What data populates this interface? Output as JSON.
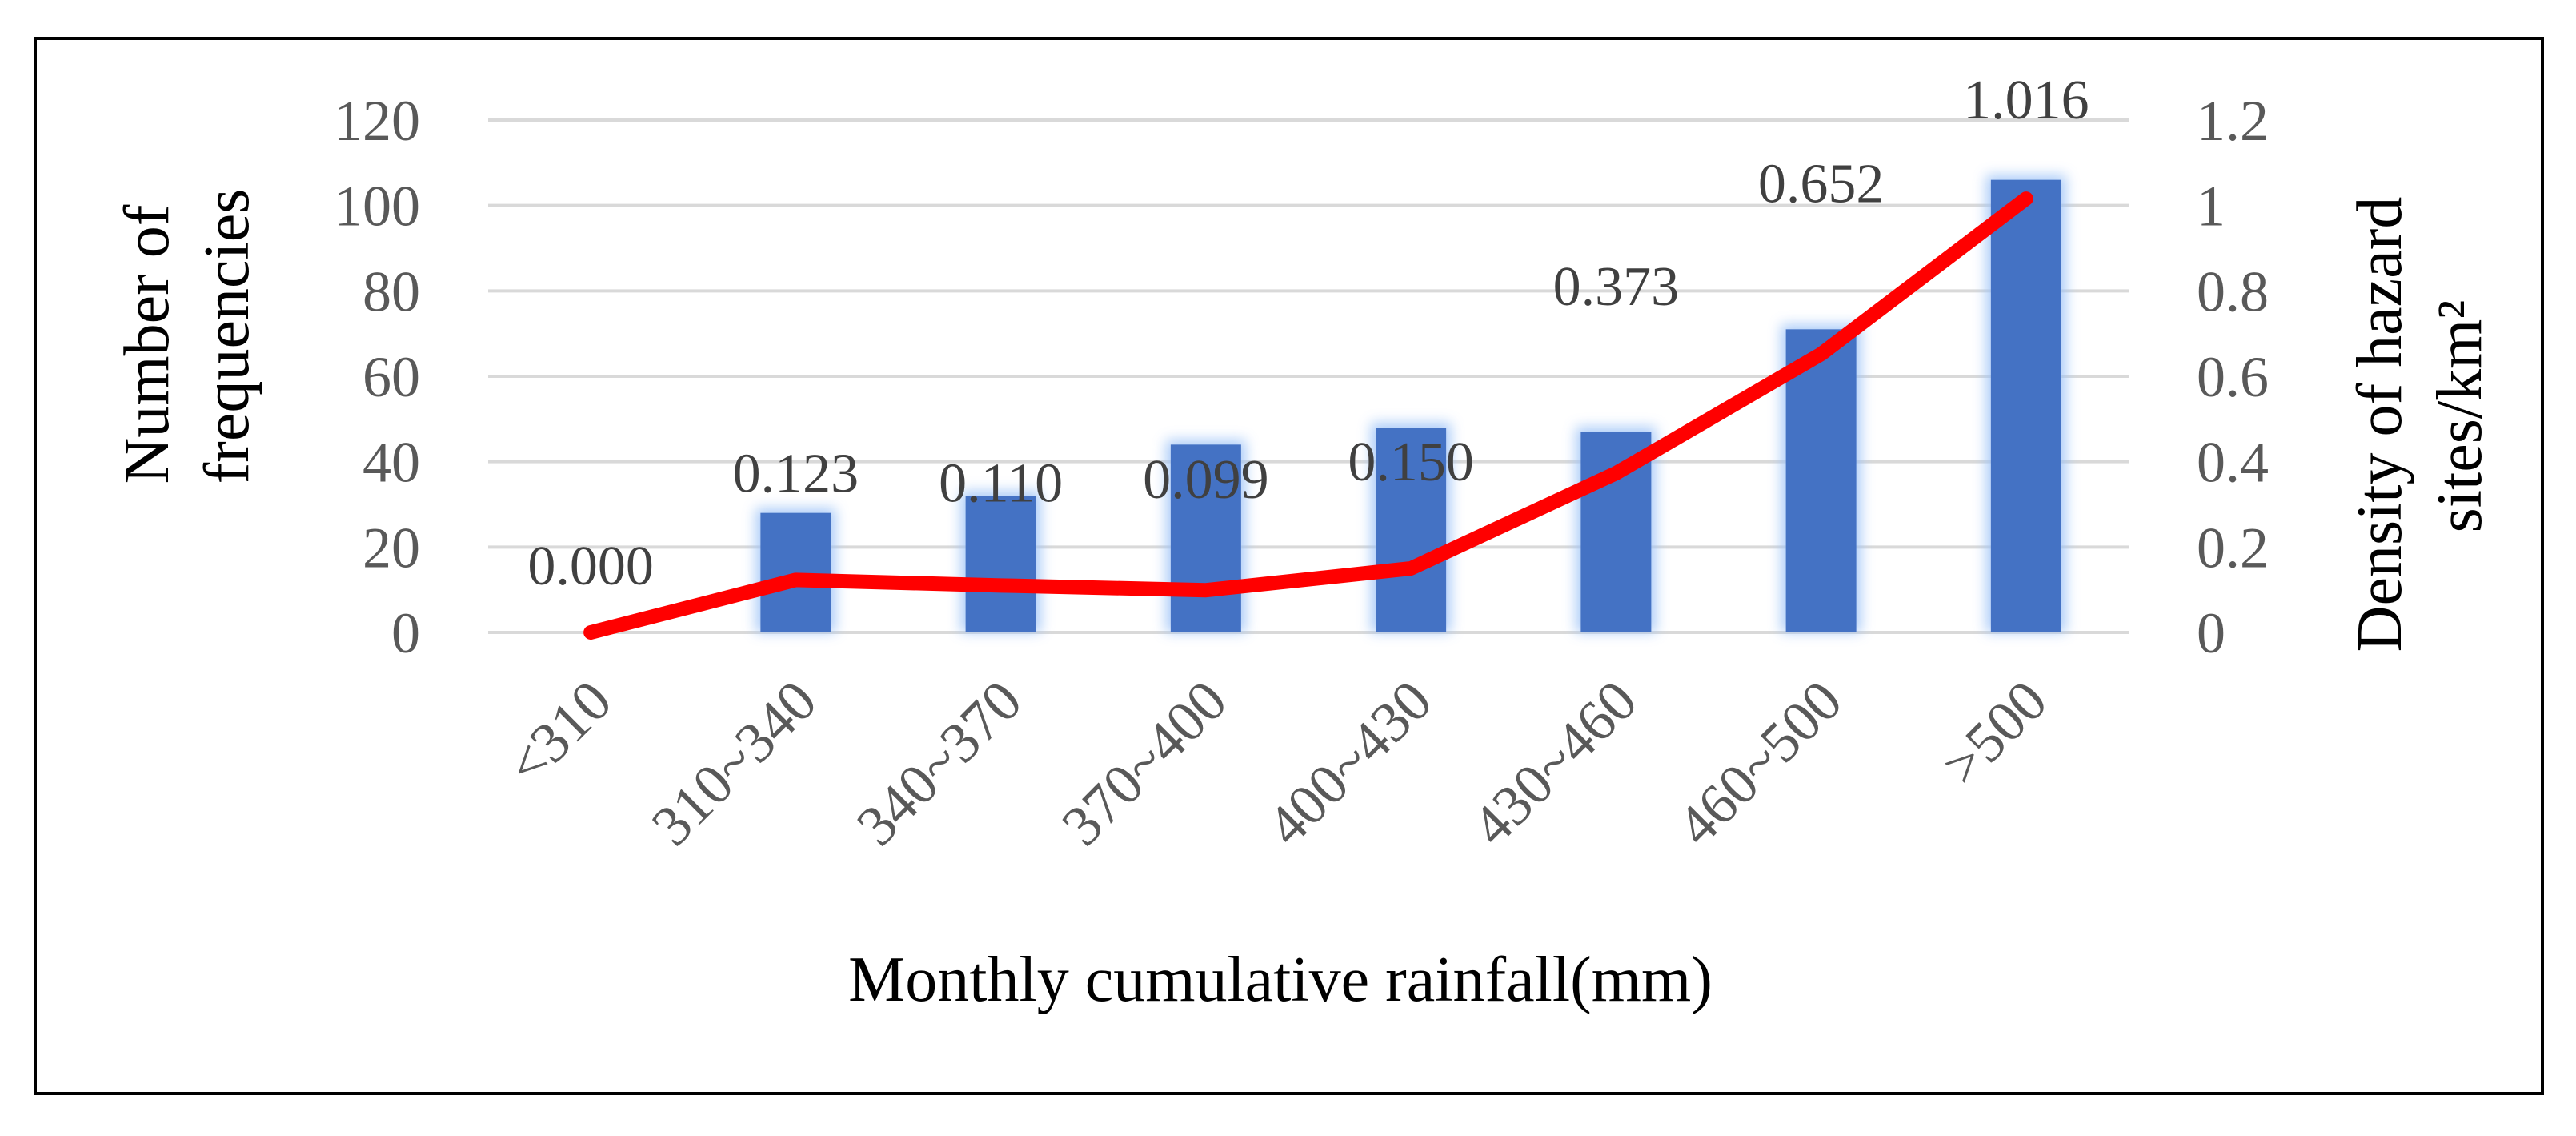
{
  "chart_data": {
    "type": "bar",
    "categories": [
      "<310",
      "310~340",
      "340~370",
      "370~400",
      "400~430",
      "430~460",
      "460~500",
      ">500"
    ],
    "series": [
      {
        "type": "bar",
        "axis": "left",
        "values": [
          0,
          28,
          32,
          44,
          48,
          47,
          71,
          106
        ],
        "color": "#4472C4"
      },
      {
        "type": "line",
        "axis": "right",
        "values": [
          0.0,
          0.123,
          0.11,
          0.099,
          0.15,
          0.373,
          0.652,
          1.016
        ],
        "labels": [
          "0.000",
          "0.123",
          "0.110",
          "0.099",
          "0.150",
          "0.373",
          "0.652",
          "1.016"
        ],
        "color": "#FF0000"
      }
    ],
    "xlabel": "Monthly cumulative rainfall(mm)",
    "ylabel_left": [
      "Number of",
      "frequencies"
    ],
    "ylabel_right": [
      "Density of hazard",
      "sites/km²"
    ],
    "ylim_left": [
      0,
      120
    ],
    "ylim_right": [
      0,
      1.2
    ],
    "yticks_left": [
      "0",
      "20",
      "40",
      "60",
      "80",
      "100",
      "120"
    ],
    "yticks_right": [
      "0",
      "0.2",
      "0.4",
      "0.6",
      "0.8",
      "1",
      "1.2"
    ],
    "grid": true,
    "gridline_color": "#D9D9D9"
  }
}
